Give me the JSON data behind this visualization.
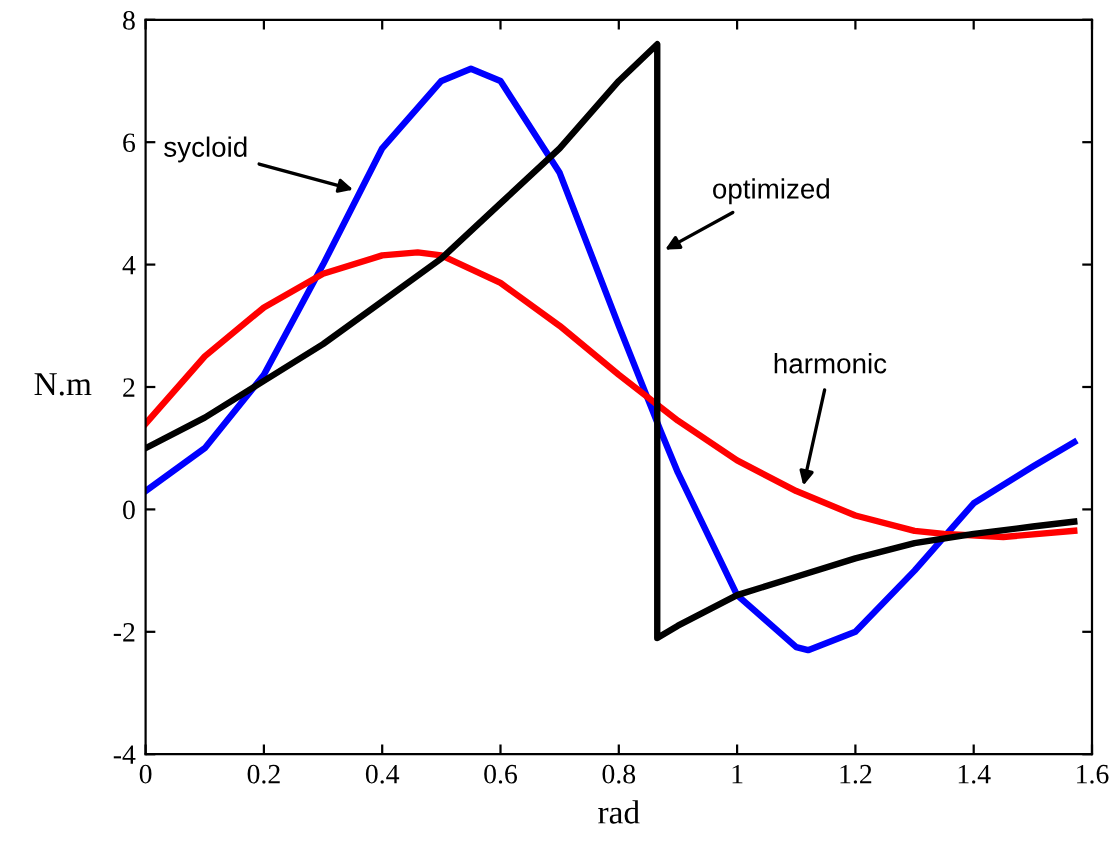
{
  "chart_data": {
    "type": "line",
    "xlabel": "rad",
    "ylabel": "N.m",
    "xlim": [
      0,
      1.6
    ],
    "ylim": [
      -4,
      8
    ],
    "xticks": [
      0,
      0.2,
      0.4,
      0.6,
      0.8,
      1,
      1.2,
      1.4,
      1.6
    ],
    "yticks": [
      -4,
      -2,
      0,
      2,
      4,
      6,
      8
    ],
    "grid": false,
    "legend": false,
    "marker": "none",
    "line_style": "solid",
    "series": [
      {
        "color": "#0000ff",
        "x": [
          0,
          0.1,
          0.2,
          0.3,
          0.4,
          0.5,
          0.55,
          0.6,
          0.7,
          0.8,
          0.87,
          0.9,
          1.0,
          1.1,
          1.12,
          1.2,
          1.3,
          1.4,
          1.5,
          1.57
        ],
        "values": [
          0.3,
          1.0,
          2.2,
          4.0,
          5.9,
          7.0,
          7.2,
          7.0,
          5.5,
          3.0,
          1.3,
          0.6,
          -1.4,
          -2.25,
          -2.3,
          -2.0,
          -1.0,
          0.1,
          0.7,
          1.1
        ]
      },
      {
        "color": "#ff0000",
        "x": [
          0,
          0.1,
          0.2,
          0.3,
          0.4,
          0.46,
          0.5,
          0.6,
          0.7,
          0.8,
          0.9,
          1.0,
          1.1,
          1.2,
          1.3,
          1.35,
          1.45,
          1.57
        ],
        "values": [
          1.4,
          2.5,
          3.3,
          3.85,
          4.15,
          4.2,
          4.15,
          3.7,
          3.0,
          2.2,
          1.45,
          0.8,
          0.3,
          -0.1,
          -0.35,
          -0.4,
          -0.45,
          -0.35
        ]
      },
      {
        "color": "#000000",
        "x": [
          0,
          0.1,
          0.2,
          0.3,
          0.4,
          0.5,
          0.6,
          0.7,
          0.8,
          0.865,
          0.865,
          0.9,
          1.0,
          1.1,
          1.2,
          1.3,
          1.4,
          1.5,
          1.57
        ],
        "values": [
          1.0,
          1.5,
          2.1,
          2.7,
          3.4,
          4.1,
          5.0,
          5.9,
          7.0,
          7.6,
          -2.1,
          -1.9,
          -1.4,
          -1.1,
          -0.8,
          -0.55,
          -0.4,
          -0.28,
          -0.2
        ]
      }
    ],
    "annotations": [
      {
        "text": "sycloid",
        "x": 0.36,
        "y": 5.2
      },
      {
        "text": "optimized",
        "x": 0.87,
        "y": 4.2
      },
      {
        "text": "harmonic",
        "x": 1.11,
        "y": 0.3
      }
    ]
  }
}
